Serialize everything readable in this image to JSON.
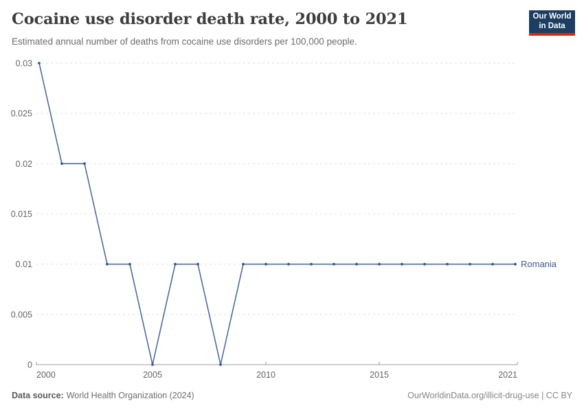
{
  "header": {
    "title": "Cocaine use disorder death rate, 2000 to 2021",
    "subtitle": "Estimated annual number of deaths from cocaine use disorders per 100,000 people.",
    "logo_line1": "Our World",
    "logo_line2": "in Data"
  },
  "chart_data": {
    "type": "line",
    "title": "Cocaine use disorder death rate, 2000 to 2021",
    "xlabel": "",
    "ylabel": "",
    "x": [
      2000,
      2001,
      2002,
      2003,
      2004,
      2005,
      2006,
      2007,
      2008,
      2009,
      2010,
      2011,
      2012,
      2013,
      2014,
      2015,
      2016,
      2017,
      2018,
      2019,
      2020,
      2021
    ],
    "series": [
      {
        "name": "Romania",
        "color": "#4c6a9c",
        "marker_color": "#3b578f",
        "values": [
          0.03,
          0.02,
          0.02,
          0.01,
          0.01,
          0,
          0.01,
          0.01,
          0,
          0.01,
          0.01,
          0.01,
          0.01,
          0.01,
          0.01,
          0.01,
          0.01,
          0.01,
          0.01,
          0.01,
          0.01,
          0.01
        ]
      }
    ],
    "xlim": [
      2000,
      2021
    ],
    "ylim": [
      0,
      0.03
    ],
    "x_tick_values": [
      2000,
      2005,
      2010,
      2015,
      2021
    ],
    "x_tick_labels": [
      "2000",
      "2005",
      "2010",
      "2015",
      "2021"
    ],
    "y_tick_values": [
      0,
      0.005,
      0.01,
      0.015,
      0.02,
      0.025,
      0.03
    ],
    "y_tick_labels": [
      "0",
      "0.005",
      "0.01",
      "0.015",
      "0.02",
      "0.025",
      "0.03"
    ],
    "grid": "horizontal-dashed",
    "legend_position": "right-of-line-end"
  },
  "footer": {
    "source_label": "Data source:",
    "source_text": "World Health Organization (2024)",
    "credit": "OurWorldinData.org/illicit-drug-use | CC BY"
  },
  "colors": {
    "title_text": "#3d3d3d",
    "subtitle_text": "#6e6e6e",
    "axis_label_text": "#636363",
    "gridline": "#dedede",
    "axis_line": "#9a9a9a",
    "line": "#4c6a9c",
    "marker": "#3b578f",
    "entity_label": "#3d5a8f",
    "logo_background": "#1d3d63",
    "logo_accent": "#dc241c"
  }
}
